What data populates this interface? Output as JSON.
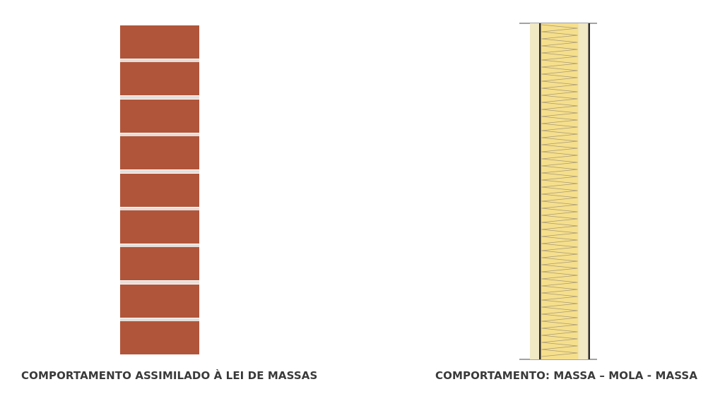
{
  "left_panel": {
    "caption": "COMPORTAMENTO ASSIMILADO À LEI DE MASSAS",
    "brick_count": 9,
    "brick_color": "#b0553a",
    "mortar_color": "#e6dcd8"
  },
  "right_panel": {
    "caption": "COMPORTAMENTO: MASSA – MOLA - MASSA",
    "board_color": "#f1e8c4",
    "insulation_color": "#f6df8c",
    "stud_line_color": "#2a2a2a"
  }
}
